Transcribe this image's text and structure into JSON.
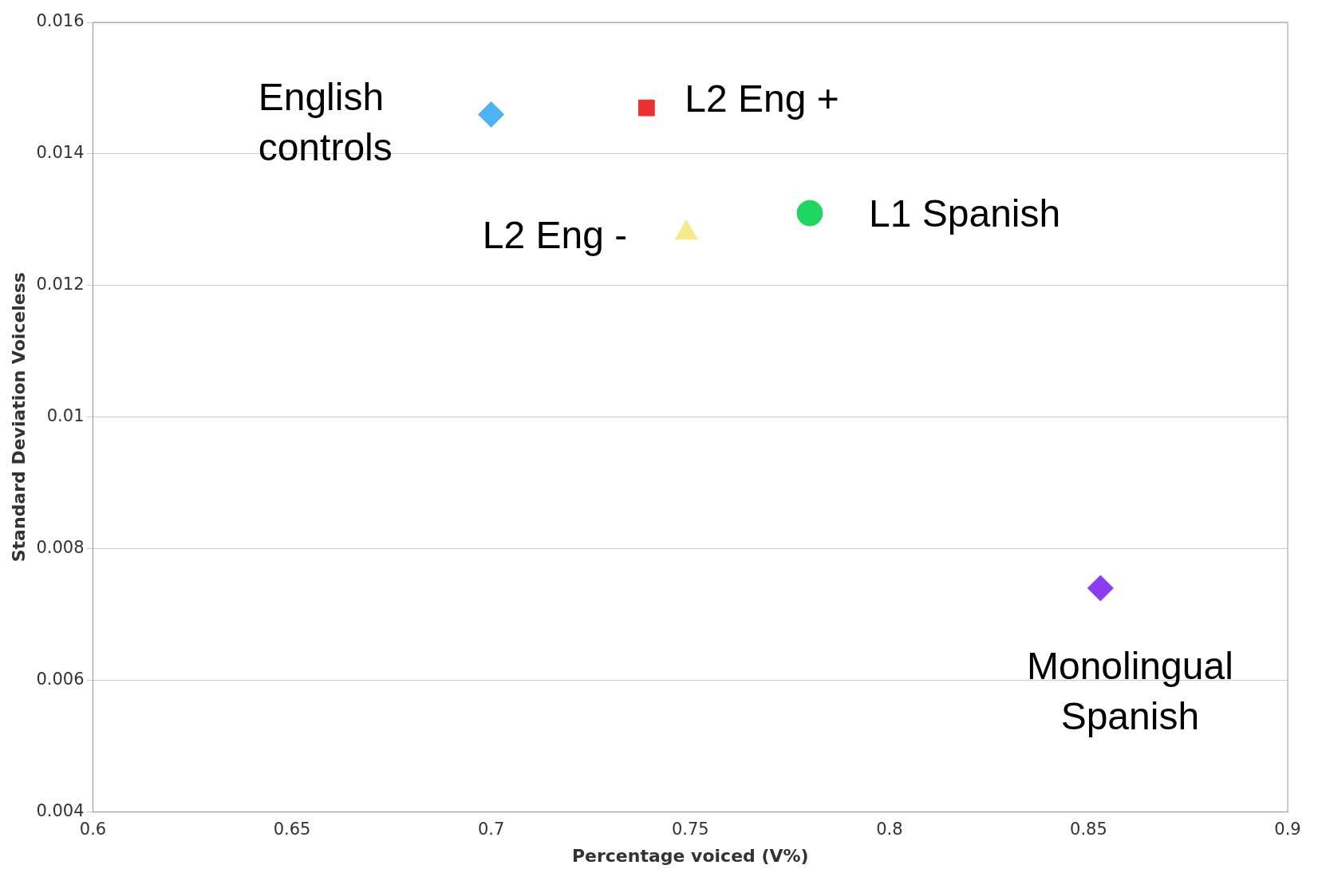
{
  "chart_data": {
    "type": "scatter",
    "xlabel": "Percentage voiced (V%)",
    "ylabel": "Standard Deviation Voiceless",
    "xlim": [
      0.6,
      0.9
    ],
    "xticks": [
      0.6,
      0.65,
      0.7,
      0.75,
      0.8,
      0.85,
      0.9
    ],
    "ylim": [
      0.004,
      0.016
    ],
    "yticks": [
      0.004,
      0.006,
      0.008,
      0.01,
      0.012,
      0.014,
      0.016
    ],
    "grid": "y",
    "legend": false,
    "series": [
      {
        "name": "English controls",
        "color": "#4db3f5",
        "marker": "diamond",
        "x": [
          0.7
        ],
        "values": [
          0.0146
        ]
      },
      {
        "name": "L2 Eng +",
        "color": "#f03030",
        "marker": "square",
        "x": [
          0.739
        ],
        "values": [
          0.0147
        ]
      },
      {
        "name": "L2 Eng -",
        "color": "#f5e98a",
        "marker": "triangle",
        "x": [
          0.749
        ],
        "values": [
          0.0128
        ]
      },
      {
        "name": "L1 Spanish",
        "color": "#1ed760",
        "marker": "circle",
        "x": [
          0.78
        ],
        "values": [
          0.0131
        ]
      },
      {
        "name": "Monolingual Spanish",
        "color": "#8a3cf0",
        "marker": "diamond",
        "x": [
          0.853
        ],
        "values": [
          0.0074
        ]
      }
    ]
  }
}
